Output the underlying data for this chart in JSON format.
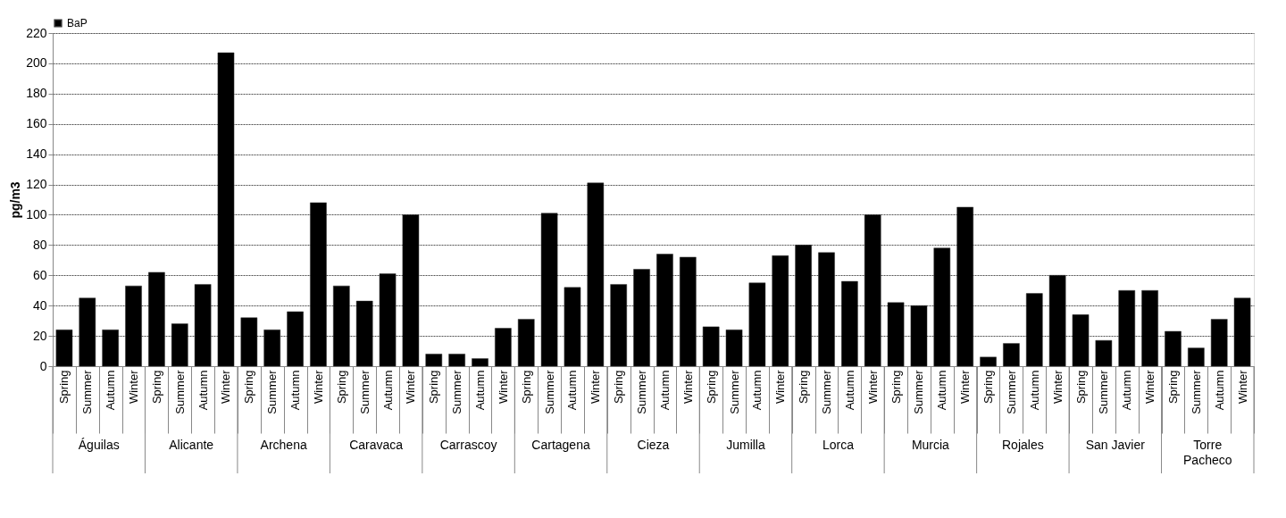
{
  "chart_data": {
    "type": "bar",
    "ylabel": "pg/m3",
    "categories": [
      "Spring",
      "Summer",
      "Autumn",
      "Winter",
      "Spring",
      "Summer",
      "Autumn",
      "Winter",
      "Spring",
      "Summer",
      "Autumn",
      "Winter",
      "Spring",
      "Summer",
      "Autumn",
      "Winter",
      "Spring",
      "Summer",
      "Autumn",
      "Winter",
      "Spring",
      "Summer",
      "Autumn",
      "Winter",
      "Spring",
      "Summer",
      "Autumn",
      "Winter",
      "Spring",
      "Summer",
      "Autumn",
      "Winter",
      "Spring",
      "Summer",
      "Autumn",
      "Winter",
      "Spring",
      "Summer",
      "Autumn",
      "Winter",
      "Spring",
      "Summer",
      "Autumn",
      "Winter",
      "Spring",
      "Summer",
      "Autumn",
      "Winter",
      "Spring",
      "Summer",
      "Autumn",
      "Winter"
    ],
    "annotations": [
      "Águilas",
      "Alicante",
      "Archena",
      "Caravaca",
      "Carrascoy",
      "Cartagena",
      "Cieza",
      "Jumilla",
      "Lorca",
      "Murcia",
      "Rojales",
      "San Javier",
      "Torre Pacheco"
    ],
    "series": [
      {
        "name": "BaP",
        "color": "#000000",
        "values": [
          24,
          45,
          24,
          53,
          62,
          28,
          54,
          207,
          32,
          24,
          36,
          108,
          53,
          43,
          61,
          100,
          8,
          8,
          5,
          25,
          31,
          101,
          52,
          121,
          54,
          64,
          74,
          72,
          26,
          24,
          55,
          73,
          80,
          75,
          56,
          100,
          42,
          40,
          78,
          105,
          6,
          15,
          48,
          60,
          34,
          17,
          50,
          50,
          23,
          12,
          31,
          45
        ]
      }
    ],
    "ylim": [
      0,
      220
    ],
    "yticks": [
      0,
      20,
      40,
      60,
      80,
      100,
      120,
      140,
      160,
      180,
      200,
      220
    ],
    "grid": "y",
    "legend": "top"
  }
}
